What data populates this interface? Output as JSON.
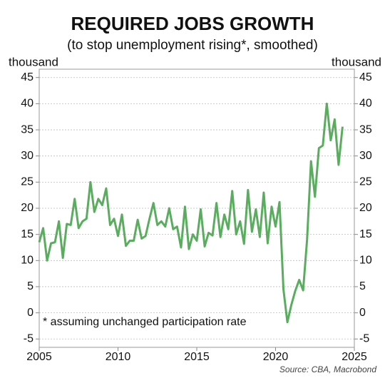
{
  "chart_data": {
    "type": "line",
    "title": "REQUIRED JOBS GROWTH",
    "subtitle": "(to stop unemployment rising*, smoothed)",
    "y_label": "thousand",
    "y2_label": "thousand",
    "annotation": "*  assuming unchanged participation rate",
    "source": "Source: CBA, Macrobond",
    "x": [
      2005.0,
      2005.25,
      2005.5,
      2005.75,
      2006.0,
      2006.25,
      2006.5,
      2006.75,
      2007.0,
      2007.25,
      2007.5,
      2007.75,
      2008.0,
      2008.25,
      2008.5,
      2008.75,
      2009.0,
      2009.25,
      2009.5,
      2009.75,
      2010.0,
      2010.25,
      2010.5,
      2010.75,
      2011.0,
      2011.25,
      2011.5,
      2011.75,
      2012.0,
      2012.25,
      2012.5,
      2012.75,
      2013.0,
      2013.25,
      2013.5,
      2013.75,
      2014.0,
      2014.25,
      2014.5,
      2014.75,
      2015.0,
      2015.25,
      2015.5,
      2015.75,
      2016.0,
      2016.25,
      2016.5,
      2016.75,
      2017.0,
      2017.25,
      2017.5,
      2017.75,
      2018.0,
      2018.25,
      2018.5,
      2018.75,
      2019.0,
      2019.25,
      2019.5,
      2019.75,
      2020.0,
      2020.25,
      2020.5,
      2020.75,
      2021.0,
      2021.25,
      2021.5,
      2021.75,
      2022.0,
      2022.25,
      2022.5,
      2022.75,
      2023.0,
      2023.25,
      2023.5,
      2023.75,
      2024.0,
      2024.25
    ],
    "series": [
      {
        "color": "#5aad5e",
        "values": [
          13.5,
          16.2,
          10.0,
          13.3,
          13.5,
          17.5,
          10.5,
          17.0,
          16.8,
          21.8,
          16.2,
          17.5,
          18.0,
          25.0,
          19.3,
          21.8,
          20.6,
          23.8,
          16.8,
          18.0,
          14.7,
          18.8,
          12.8,
          13.8,
          13.8,
          17.8,
          14.2,
          14.7,
          18.0,
          21.0,
          16.8,
          17.5,
          16.5,
          20.0,
          16.0,
          16.5,
          12.5,
          20.3,
          12.2,
          15.0,
          13.8,
          19.8,
          12.7,
          15.3,
          14.8,
          21.0,
          14.5,
          18.8,
          16.0,
          23.3,
          15.0,
          17.5,
          13.2,
          23.5,
          15.5,
          19.8,
          14.5,
          23.0,
          13.3,
          20.3,
          16.5,
          21.2,
          4.5,
          -1.8,
          1.5,
          4.2,
          6.3,
          4.3,
          14.0,
          29.0,
          22.2,
          31.5,
          32.0,
          40.0,
          33.0,
          37.0,
          28.3,
          35.6
        ]
      }
    ],
    "xlim": [
      2005,
      2025
    ],
    "xticks": [
      2005,
      2010,
      2015,
      2020,
      2025
    ],
    "ylim": [
      -6.6,
      46.6
    ],
    "yticks": [
      -5,
      0,
      5,
      10,
      15,
      20,
      25,
      30,
      35,
      40,
      45
    ],
    "y2lim": [
      -6.6,
      46.6
    ],
    "y2ticks": [
      -5,
      0,
      5,
      10,
      15,
      20,
      25,
      30,
      35,
      40,
      45
    ],
    "grid": true
  }
}
